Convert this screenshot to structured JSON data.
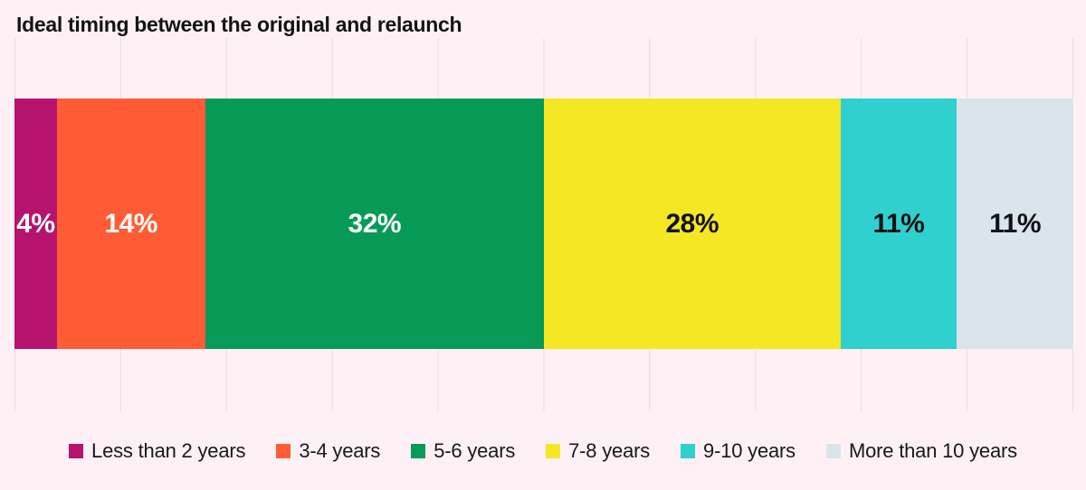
{
  "title": "Ideal timing between the original and relaunch",
  "colors": {
    "background": "#fdf1f6",
    "gridline": "#e6dee3",
    "title_text": "#131316",
    "legend_text": "#18181b"
  },
  "chart_data": {
    "type": "bar",
    "subtype": "stacked-horizontal-percentage",
    "title": "Ideal timing between the original and relaunch",
    "categories": [
      "Less than 2 years",
      "3-4 years",
      "5-6 years",
      "7-8 years",
      "9-10 years",
      "More than 10 years"
    ],
    "values": [
      4,
      14,
      32,
      28,
      11,
      11
    ],
    "labels": [
      "4%",
      "14%",
      "32%",
      "28%",
      "11%",
      "11%"
    ],
    "segment_colors": [
      "#b5136e",
      "#ff5c35",
      "#069a57",
      "#f5e723",
      "#2fd0ce",
      "#dae4eb"
    ],
    "label_colors": [
      "#ffffff",
      "#ffffff",
      "#ffffff",
      "#111114",
      "#111114",
      "#111114"
    ],
    "xlim": [
      0,
      100
    ],
    "gridline_interval_percent": 10,
    "grid": true,
    "legend_position": "bottom"
  }
}
